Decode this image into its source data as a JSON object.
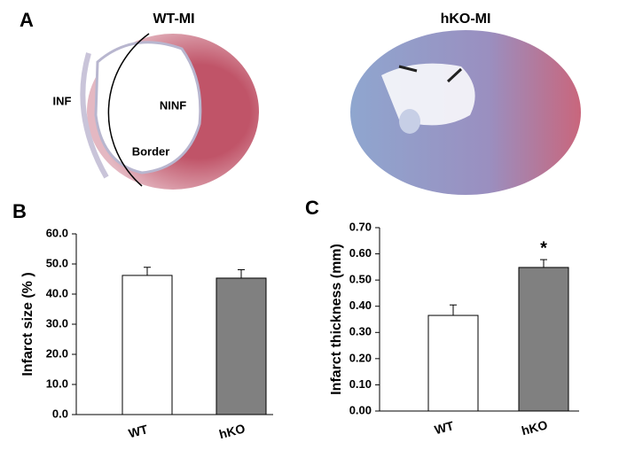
{
  "figure": {
    "panel_labels": [
      "A",
      "B",
      "C"
    ],
    "images": [
      {
        "title": "WT-MI",
        "labels": [
          "INF",
          "NINF",
          "Border"
        ]
      },
      {
        "title": "hKO-MI"
      }
    ]
  },
  "chart_data": [
    {
      "type": "bar",
      "ylabel": "Infarct size (% )",
      "categories": [
        "WT",
        "hKO"
      ],
      "values": [
        46.2,
        45.3
      ],
      "errors": [
        2.7,
        2.8
      ],
      "colors": [
        "#ffffff",
        "#808080"
      ],
      "ylim": [
        0,
        60
      ],
      "yticks": [
        {
          "value": 0,
          "label": "0.0"
        },
        {
          "value": 10,
          "label": "10.0"
        },
        {
          "value": 20,
          "label": "20.0"
        },
        {
          "value": 30,
          "label": "30.0"
        },
        {
          "value": 40,
          "label": "40.0"
        },
        {
          "value": 50,
          "label": "50.0"
        },
        {
          "value": 60,
          "label": "60.0"
        }
      ]
    },
    {
      "type": "bar",
      "ylabel": "Infarct thickness (mm)",
      "categories": [
        "WT",
        "hKO"
      ],
      "values": [
        0.365,
        0.548
      ],
      "errors": [
        0.04,
        0.03
      ],
      "colors": [
        "#ffffff",
        "#808080"
      ],
      "ylim": [
        0,
        0.7
      ],
      "yticks": [
        {
          "value": 0,
          "label": "0.00"
        },
        {
          "value": 0.1,
          "label": "0.10"
        },
        {
          "value": 0.2,
          "label": "0.20"
        },
        {
          "value": 0.3,
          "label": "0.30"
        },
        {
          "value": 0.4,
          "label": "0.40"
        },
        {
          "value": 0.5,
          "label": "0.50"
        },
        {
          "value": 0.6,
          "label": "0.60"
        },
        {
          "value": 0.7,
          "label": "0.70"
        }
      ],
      "annotation": {
        "text": "*",
        "category": "hKO"
      }
    }
  ]
}
